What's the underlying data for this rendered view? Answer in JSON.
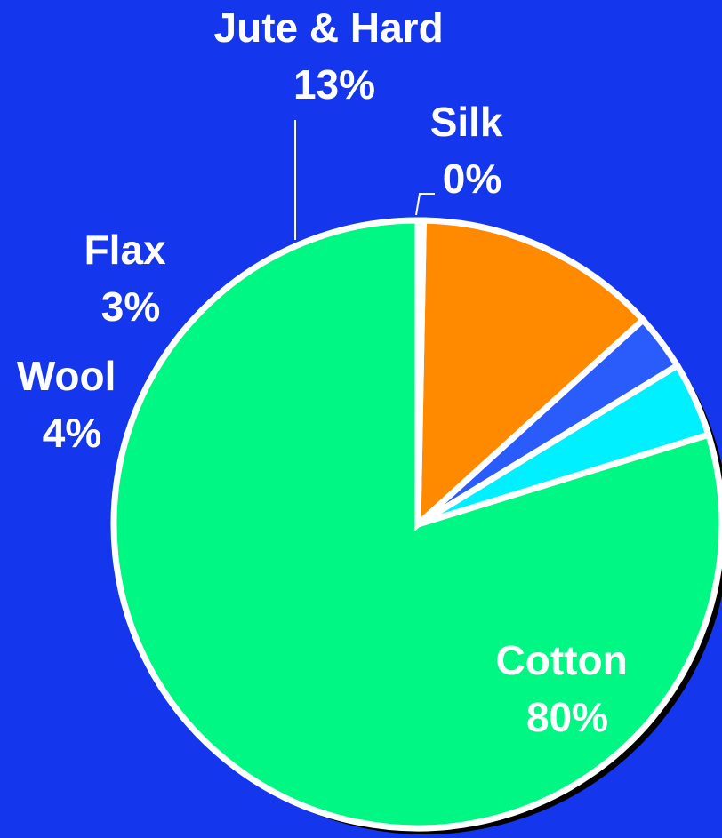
{
  "chart_data": {
    "type": "pie",
    "start_angle_deg": 0,
    "direction": "counterclockwise",
    "slices": [
      {
        "name": "Cotton",
        "value": 80,
        "label_name": "Cotton",
        "label_value": "80%",
        "color": "#00f783",
        "label_color": "#ffffff"
      },
      {
        "name": "Wool",
        "value": 4,
        "label_name": "Wool",
        "label_value": "4%",
        "color": "#00f0ff",
        "label_color": "#ffffff"
      },
      {
        "name": "Flax",
        "value": 3,
        "label_name": "Flax",
        "label_value": "3%",
        "color": "#2a5cfb",
        "label_color": "#ffffff"
      },
      {
        "name": "Jute & Hard",
        "value": 13,
        "label_name": "Jute & Hard",
        "label_value": "13%",
        "color": "#ff8a00",
        "label_color": "#ffffff"
      },
      {
        "name": "Silk",
        "value": 0.3,
        "label_name": "Silk",
        "label_value": "0%",
        "color": "#ffffff",
        "label_color": "#ffffff"
      }
    ],
    "colors": {
      "background": "#1437ee",
      "outline": "#ffffff",
      "shadow": "#000000"
    }
  }
}
